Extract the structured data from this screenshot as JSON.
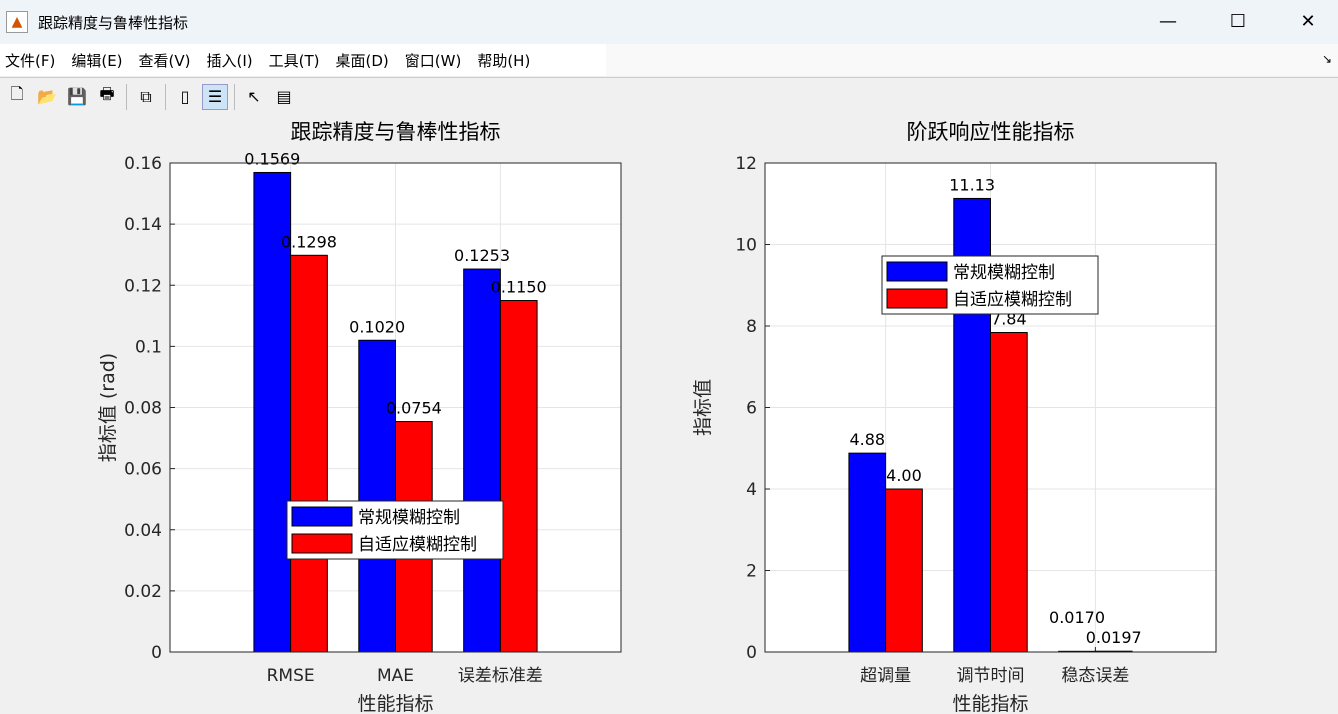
{
  "window": {
    "title": "跟踪精度与鲁棒性指标",
    "minimize": "—",
    "maximize": "☐",
    "close": "✕"
  },
  "menu": [
    "文件(F)",
    "编辑(E)",
    "查看(V)",
    "插入(I)",
    "工具(T)",
    "桌面(D)",
    "窗口(W)",
    "帮助(H)"
  ],
  "toolbar": [
    {
      "icon": "new-file-icon",
      "glyph": "🗋"
    },
    {
      "icon": "open-folder-icon",
      "glyph": "📂"
    },
    {
      "icon": "save-icon",
      "glyph": "💾"
    },
    {
      "icon": "print-icon",
      "glyph": "🖶"
    },
    {
      "icon": "link-plot-icon",
      "glyph": "⧉"
    },
    {
      "icon": "colorbar-icon",
      "glyph": "▯"
    },
    {
      "icon": "legend-icon",
      "glyph": "☰",
      "active": true
    },
    {
      "icon": "pointer-icon",
      "glyph": "↖"
    },
    {
      "icon": "property-inspector-icon",
      "glyph": "▤"
    }
  ],
  "colors": {
    "series1": "#0000ff",
    "series2": "#ff0000"
  },
  "chart_data": [
    {
      "type": "bar",
      "title": "跟踪精度与鲁棒性指标",
      "xlabel": "性能指标",
      "ylabel": "指标值 (rad)",
      "categories": [
        "RMSE",
        "MAE",
        "误差标准差"
      ],
      "ylim": [
        0,
        0.16
      ],
      "xlim": [
        -0.15,
        4.15
      ],
      "yticks": [
        "0",
        "0.02",
        "0.04",
        "0.06",
        "0.08",
        "0.1",
        "0.12",
        "0.14",
        "0.16"
      ],
      "grid": true,
      "legend_position": "bottom-center",
      "series": [
        {
          "name": "常规模糊控制",
          "values": [
            0.1569,
            0.102,
            0.1253
          ],
          "labels": [
            "0.1569",
            "0.1020",
            "0.1253"
          ]
        },
        {
          "name": "自适应模糊控制",
          "values": [
            0.1298,
            0.0754,
            0.115
          ],
          "labels": [
            "0.1298",
            "0.0754",
            "0.1150"
          ]
        }
      ]
    },
    {
      "type": "bar",
      "title": "阶跃响应性能指标",
      "xlabel": "性能指标",
      "ylabel": "指标值",
      "categories": [
        "超调量",
        "调节时间",
        "稳态误差"
      ],
      "ylim": [
        0,
        12
      ],
      "xlim": [
        -0.15,
        4.15
      ],
      "yticks": [
        "0",
        "2",
        "4",
        "6",
        "8",
        "10",
        "12"
      ],
      "grid": true,
      "legend_position": "upper-center",
      "series": [
        {
          "name": "常规模糊控制",
          "values": [
            4.88,
            11.13,
            0.017
          ],
          "labels": [
            "4.88",
            "11.13",
            "0.0170"
          ]
        },
        {
          "name": "自适应模糊控制",
          "values": [
            4.0,
            7.84,
            0.0197
          ],
          "labels": [
            "4.00",
            "7.84",
            "0.0197"
          ]
        }
      ]
    }
  ]
}
